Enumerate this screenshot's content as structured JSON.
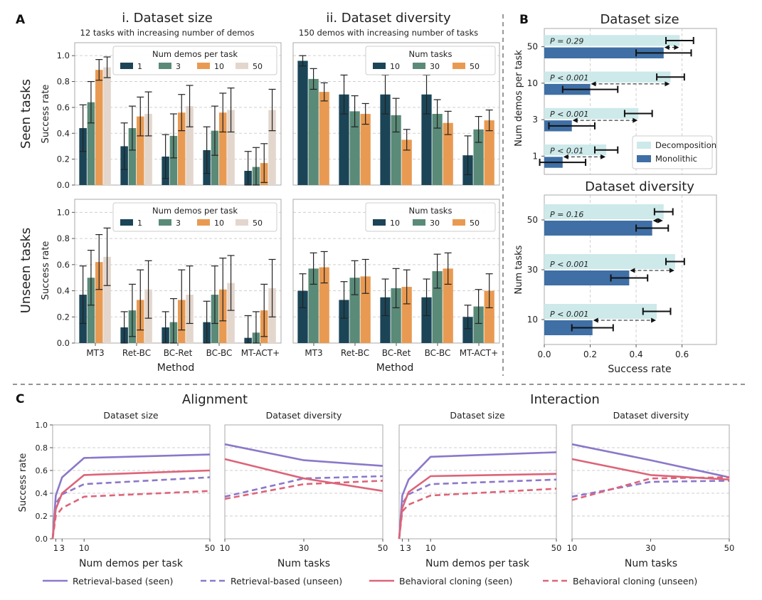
{
  "colors": {
    "n1": "#1b4557",
    "n3": "#5a8a78",
    "n10": "#e99a52",
    "n50": "#e3d6cd",
    "decomp": "#cde9ea",
    "mono": "#3f6fa5",
    "retrieval": "#8b78c9",
    "bc": "#dd6479",
    "grid": "#cfcfcf",
    "axis": "#aaaaaa",
    "text": "#222222"
  },
  "panel_labels": {
    "a": "A",
    "b": "B",
    "c": "C"
  },
  "panelA": {
    "col1_title": "i. Dataset size",
    "col1_subtitle": "12 tasks with increasing number of demos",
    "col2_title": "ii. Dataset diversity",
    "col2_subtitle": "150 demos with increasing number of tasks",
    "row_seen": "Seen tasks",
    "row_unseen": "Unseen tasks",
    "ylabel": "Success rate",
    "xlabel": "Method",
    "legend_size_title": "Num demos per task",
    "legend_div_title": "Num tasks"
  },
  "panelB": {
    "legend_decomp": "Decomposition",
    "legend_mono": "Monolithic",
    "xlabel": "Success rate",
    "ylabel_top": "Num demos per task",
    "ylabel_bottom": "Num tasks"
  },
  "panelC": {
    "group1": "Alignment",
    "group2": "Interaction",
    "sub_size": "Dataset size",
    "sub_div": "Dataset diversity",
    "ylabel": "Success rate",
    "xlabel_size": "Num demos per task",
    "xlabel_div": "Num tasks",
    "legend": [
      "Retrieval-based (seen)",
      "Retrieval-based (unseen)",
      "Behavioral cloning (seen)",
      "Behavioral cloning (unseen)"
    ]
  },
  "chart_data": [
    {
      "id": "A-size-seen",
      "type": "bar",
      "title": "i. Dataset size — Seen tasks",
      "categories": [
        "MT3",
        "Ret-BC",
        "BC-Ret",
        "BC-BC",
        "MT-ACT+"
      ],
      "ylim": [
        0,
        1.1
      ],
      "ylabel": "Success rate",
      "series": [
        {
          "name": "1",
          "values": [
            0.44,
            0.3,
            0.22,
            0.27,
            0.11
          ],
          "err": [
            0.18,
            0.18,
            0.17,
            0.18,
            0.15
          ]
        },
        {
          "name": "3",
          "values": [
            0.64,
            0.44,
            0.38,
            0.42,
            0.14
          ],
          "err": [
            0.16,
            0.17,
            0.17,
            0.19,
            0.15
          ]
        },
        {
          "name": "10",
          "values": [
            0.89,
            0.53,
            0.56,
            0.56,
            0.17
          ],
          "err": [
            0.08,
            0.15,
            0.14,
            0.15,
            0.15
          ]
        },
        {
          "name": "50",
          "values": [
            0.91,
            0.55,
            0.61,
            0.58,
            0.58
          ],
          "err": [
            0.08,
            0.17,
            0.16,
            0.17,
            0.16
          ]
        }
      ]
    },
    {
      "id": "A-div-seen",
      "type": "bar",
      "title": "ii. Dataset diversity — Seen tasks",
      "categories": [
        "MT3",
        "Ret-BC",
        "BC-Ret",
        "BC-BC",
        "MT-ACT+"
      ],
      "ylim": [
        0,
        1.1
      ],
      "series": [
        {
          "name": "10",
          "values": [
            0.96,
            0.7,
            0.7,
            0.7,
            0.23
          ],
          "err": [
            0.04,
            0.15,
            0.15,
            0.15,
            0.15
          ]
        },
        {
          "name": "30",
          "values": [
            0.82,
            0.57,
            0.54,
            0.55,
            0.43
          ],
          "err": [
            0.08,
            0.12,
            0.13,
            0.11,
            0.1
          ]
        },
        {
          "name": "50",
          "values": [
            0.72,
            0.55,
            0.35,
            0.48,
            0.5
          ],
          "err": [
            0.07,
            0.08,
            0.08,
            0.09,
            0.08
          ]
        }
      ]
    },
    {
      "id": "A-size-unseen",
      "type": "bar",
      "title": "i. Dataset size — Unseen tasks",
      "categories": [
        "MT3",
        "Ret-BC",
        "BC-Ret",
        "BC-BC",
        "MT-ACT+"
      ],
      "ylim": [
        0,
        1.1
      ],
      "series": [
        {
          "name": "1",
          "values": [
            0.37,
            0.12,
            0.12,
            0.16,
            0.04
          ],
          "err": [
            0.22,
            0.12,
            0.12,
            0.16,
            0.17
          ]
        },
        {
          "name": "3",
          "values": [
            0.5,
            0.25,
            0.16,
            0.37,
            0.08
          ],
          "err": [
            0.21,
            0.2,
            0.18,
            0.22,
            0.16
          ]
        },
        {
          "name": "10",
          "values": [
            0.62,
            0.33,
            0.33,
            0.41,
            0.25
          ],
          "err": [
            0.21,
            0.23,
            0.23,
            0.24,
            0.2
          ]
        },
        {
          "name": "50",
          "values": [
            0.66,
            0.41,
            0.37,
            0.46,
            0.42
          ],
          "err": [
            0.22,
            0.22,
            0.22,
            0.21,
            0.22
          ]
        }
      ]
    },
    {
      "id": "A-div-unseen",
      "type": "bar",
      "title": "ii. Dataset diversity — Unseen tasks",
      "categories": [
        "MT3",
        "Ret-BC",
        "BC-Ret",
        "BC-BC",
        "MT-ACT+"
      ],
      "ylim": [
        0,
        1.1
      ],
      "xlabel": "Method",
      "series": [
        {
          "name": "10",
          "values": [
            0.4,
            0.33,
            0.35,
            0.35,
            0.2
          ],
          "err": [
            0.13,
            0.14,
            0.14,
            0.14,
            0.09
          ]
        },
        {
          "name": "30",
          "values": [
            0.57,
            0.5,
            0.42,
            0.55,
            0.28
          ],
          "err": [
            0.12,
            0.13,
            0.15,
            0.13,
            0.13
          ]
        },
        {
          "name": "50",
          "values": [
            0.58,
            0.51,
            0.43,
            0.57,
            0.4
          ],
          "err": [
            0.12,
            0.13,
            0.13,
            0.12,
            0.13
          ]
        }
      ]
    },
    {
      "id": "B-size",
      "type": "bar",
      "orientation": "horizontal",
      "title": "Dataset size",
      "categories": [
        "50",
        "10",
        "3",
        "1"
      ],
      "ylabel": "Num demos per task",
      "xlim": [
        0,
        0.75
      ],
      "decomposition": [
        0.59,
        0.55,
        0.41,
        0.27
      ],
      "decomposition_err": [
        0.06,
        0.06,
        0.06,
        0.05
      ],
      "monolithic": [
        0.52,
        0.2,
        0.12,
        0.08
      ],
      "monolithic_err": [
        0.12,
        0.12,
        0.1,
        0.1
      ],
      "p_values": [
        "P = 0.29",
        "P < 0.001",
        "P < 0.001",
        "P < 0.01"
      ]
    },
    {
      "id": "B-div",
      "type": "bar",
      "orientation": "horizontal",
      "title": "Dataset diversity",
      "categories": [
        "50",
        "30",
        "10"
      ],
      "ylabel": "Num tasks",
      "xlabel": "Success rate",
      "xlim": [
        0,
        0.75
      ],
      "xticks": [
        "0.0",
        "0.2",
        "0.4",
        "0.6"
      ],
      "decomposition": [
        0.52,
        0.57,
        0.49
      ],
      "decomposition_err": [
        0.04,
        0.04,
        0.06
      ],
      "monolithic": [
        0.47,
        0.37,
        0.21
      ],
      "monolithic_err": [
        0.07,
        0.08,
        0.09
      ],
      "p_values": [
        "P = 0.16",
        "P < 0.001",
        "P < 0.001"
      ]
    },
    {
      "id": "C-align-size",
      "type": "line",
      "title": "Alignment — Dataset size",
      "x": [
        0,
        1,
        3,
        10,
        50
      ],
      "xticks": [
        "1",
        "3",
        "10",
        "50"
      ],
      "ylim": [
        0,
        1.0
      ],
      "yticks": [
        "0.0",
        "0.2",
        "0.4",
        "0.6",
        "0.8",
        "1.0"
      ],
      "ylabel": "Success rate",
      "xlabel": "Num demos per task",
      "series": [
        {
          "name": "Retrieval-based (seen)",
          "values": [
            0.0,
            0.38,
            0.54,
            0.71,
            0.74
          ]
        },
        {
          "name": "Retrieval-based (unseen)",
          "values": [
            0.0,
            0.31,
            0.39,
            0.48,
            0.54
          ]
        },
        {
          "name": "Behavioral cloning (seen)",
          "values": [
            0.0,
            0.26,
            0.4,
            0.56,
            0.6
          ]
        },
        {
          "name": "Behavioral cloning (unseen)",
          "values": [
            0.0,
            0.2,
            0.27,
            0.37,
            0.42
          ]
        }
      ]
    },
    {
      "id": "C-align-div",
      "type": "line",
      "title": "Alignment — Dataset diversity",
      "x": [
        10,
        30,
        50
      ],
      "xticks": [
        "10",
        "30",
        "50"
      ],
      "xlabel": "Num tasks",
      "series": [
        {
          "name": "Retrieval-based (seen)",
          "values": [
            0.83,
            0.69,
            0.64
          ]
        },
        {
          "name": "Retrieval-based (unseen)",
          "values": [
            0.37,
            0.53,
            0.55
          ]
        },
        {
          "name": "Behavioral cloning (seen)",
          "values": [
            0.7,
            0.53,
            0.42
          ]
        },
        {
          "name": "Behavioral cloning (unseen)",
          "values": [
            0.35,
            0.48,
            0.51
          ]
        }
      ]
    },
    {
      "id": "C-inter-size",
      "type": "line",
      "title": "Interaction — Dataset size",
      "x": [
        0,
        1,
        3,
        10,
        50
      ],
      "xticks": [
        "1",
        "3",
        "10",
        "50"
      ],
      "xlabel": "Num demos per task",
      "series": [
        {
          "name": "Retrieval-based (seen)",
          "values": [
            0.0,
            0.38,
            0.52,
            0.72,
            0.76
          ]
        },
        {
          "name": "Retrieval-based (unseen)",
          "values": [
            0.0,
            0.31,
            0.39,
            0.48,
            0.52
          ]
        },
        {
          "name": "Behavioral cloning (seen)",
          "values": [
            0.0,
            0.27,
            0.41,
            0.55,
            0.57
          ]
        },
        {
          "name": "Behavioral cloning (unseen)",
          "values": [
            0.0,
            0.24,
            0.3,
            0.38,
            0.44
          ]
        }
      ]
    },
    {
      "id": "C-inter-div",
      "type": "line",
      "title": "Interaction — Dataset diversity",
      "x": [
        10,
        30,
        50
      ],
      "xticks": [
        "10",
        "30",
        "50"
      ],
      "xlabel": "Num tasks",
      "series": [
        {
          "name": "Retrieval-based (seen)",
          "values": [
            0.83,
            0.69,
            0.54
          ]
        },
        {
          "name": "Retrieval-based (unseen)",
          "values": [
            0.37,
            0.5,
            0.51
          ]
        },
        {
          "name": "Behavioral cloning (seen)",
          "values": [
            0.7,
            0.56,
            0.52
          ]
        },
        {
          "name": "Behavioral cloning (unseen)",
          "values": [
            0.34,
            0.53,
            0.54
          ]
        }
      ]
    }
  ]
}
